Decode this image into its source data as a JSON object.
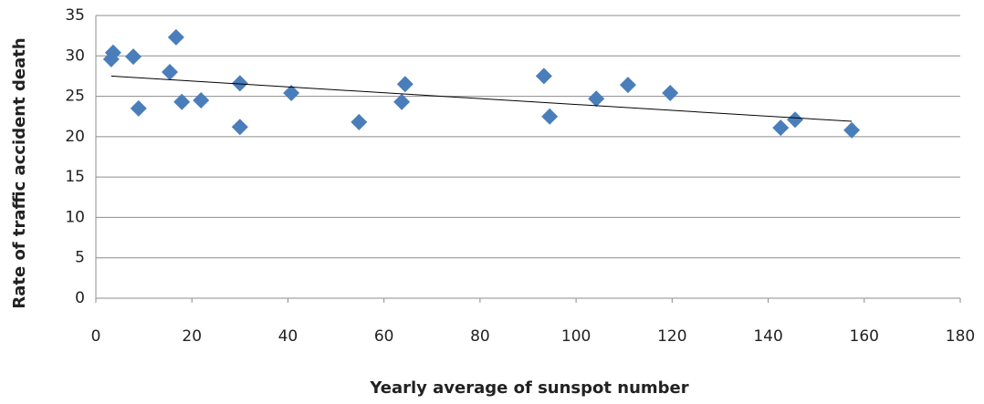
{
  "chart_data": {
    "type": "scatter",
    "x_label": "Yearly average of sunspot number",
    "y_label": "Rate of traffic accident death",
    "series": [
      {
        "color": "#4a7ebb",
        "x": [
          3.2,
          3.6,
          7.8,
          8.9,
          15.4,
          16.7,
          17.9,
          21.9,
          30.0,
          30.0,
          40.7,
          54.8,
          63.7,
          64.4,
          93.3,
          94.5,
          104.2,
          110.8,
          119.6,
          142.6,
          145.6,
          157.4
        ],
        "values": [
          29.6,
          30.4,
          29.9,
          23.5,
          28.0,
          32.3,
          24.3,
          24.5,
          26.6,
          21.2,
          25.4,
          21.8,
          24.3,
          26.5,
          27.5,
          22.5,
          24.7,
          26.4,
          25.4,
          21.1,
          22.1,
          20.8
        ]
      }
    ],
    "trendline": {
      "color": "#000000",
      "x": [
        3.2,
        157.4
      ],
      "values": [
        27.5,
        21.9
      ]
    },
    "xlim": [
      0,
      180
    ],
    "xticks": [
      0,
      20,
      40,
      60,
      80,
      100,
      120,
      140,
      160,
      180
    ],
    "ylim": [
      0,
      35
    ],
    "yticks": [
      0,
      5,
      10,
      15,
      20,
      25,
      30,
      35
    ],
    "grid": true
  }
}
